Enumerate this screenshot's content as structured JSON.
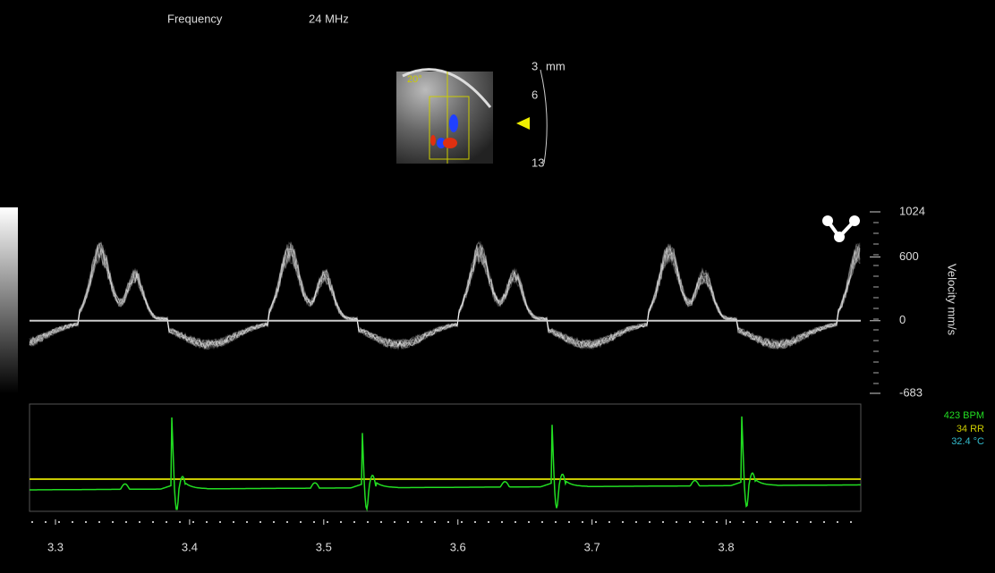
{
  "header": {
    "frequency_label": "Frequency",
    "frequency_value": "24 MHz"
  },
  "thumbnail": {
    "angle": "20°",
    "depth_unit": "mm",
    "depth_labels": [
      "3",
      "6",
      "13"
    ]
  },
  "chart_data": {
    "type": "spectral-doppler",
    "y_label": "Velocity mm/s",
    "ylim": [
      -683,
      1024
    ],
    "yticks": [
      1024,
      600,
      0,
      -683
    ],
    "xlim": [
      3.282,
      3.899
    ],
    "xticks": [
      3.3,
      3.4,
      3.5,
      3.6,
      3.7,
      3.8
    ]
  },
  "vitals": {
    "heart_rate": "423 BPM",
    "respiration": "34 RR",
    "temperature": "32.4 °C"
  }
}
